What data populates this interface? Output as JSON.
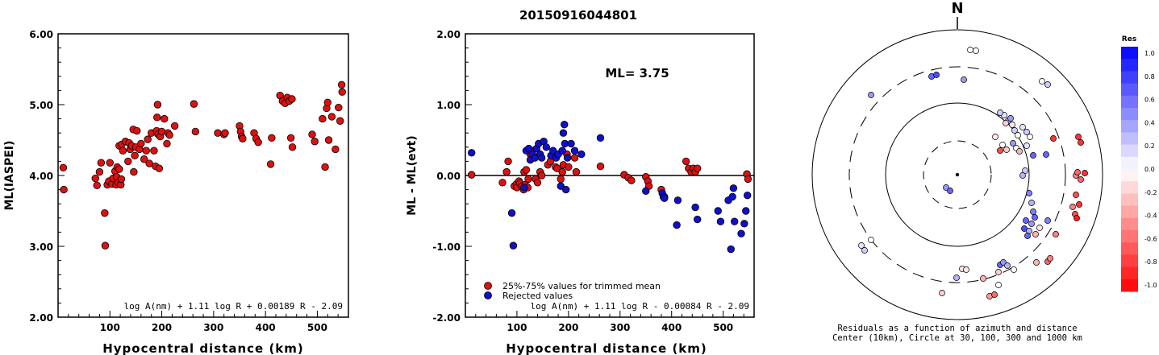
{
  "title": "20150916044801",
  "chart_data": [
    {
      "type": "scatter",
      "ylabel": "ML(IASPEI)",
      "xlabel": "Hypocentral distance (km)",
      "xlim": [
        0,
        560
      ],
      "ylim": [
        2.0,
        6.0
      ],
      "xticks": [
        100,
        200,
        300,
        400,
        500
      ],
      "yticks": [
        "2.00",
        "3.00",
        "4.00",
        "5.00",
        "6.00"
      ],
      "formula": "log A(nm) + 1.11 log R + 0.00189 R - 2.09",
      "series": [
        {
          "color": "#dd1111",
          "points": [
            [
              10,
              4.11
            ],
            [
              11,
              3.8
            ],
            [
              72,
              3.96
            ],
            [
              75,
              3.86
            ],
            [
              80,
              4.05
            ],
            [
              83,
              4.18
            ],
            [
              90,
              3.47
            ],
            [
              91,
              3.01
            ],
            [
              95,
              3.87
            ],
            [
              98,
              3.92
            ],
            [
              100,
              4.18
            ],
            [
              104,
              3.88
            ],
            [
              106,
              3.96
            ],
            [
              110,
              4.06
            ],
            [
              112,
              3.87
            ],
            [
              113,
              3.98
            ],
            [
              114,
              4.12
            ],
            [
              116,
              3.9
            ],
            [
              118,
              4.09
            ],
            [
              121,
              3.87
            ],
            [
              122,
              3.95
            ],
            [
              118,
              4.42
            ],
            [
              123,
              4.44
            ],
            [
              125,
              4.35
            ],
            [
              130,
              4.48
            ],
            [
              135,
              4.2
            ],
            [
              137,
              4.46
            ],
            [
              139,
              4.37
            ],
            [
              142,
              4.42
            ],
            [
              145,
              4.65
            ],
            [
              146,
              4.05
            ],
            [
              148,
              4.28
            ],
            [
              150,
              4.4
            ],
            [
              152,
              4.63
            ],
            [
              157,
              4.37
            ],
            [
              160,
              4.45
            ],
            [
              166,
              4.23
            ],
            [
              170,
              4.35
            ],
            [
              173,
              4.51
            ],
            [
              176,
              4.17
            ],
            [
              180,
              4.6
            ],
            [
              185,
              4.35
            ],
            [
              188,
              4.13
            ],
            [
              190,
              4.63
            ],
            [
              191,
              4.82
            ],
            [
              192,
              5.0
            ],
            [
              193,
              4.58
            ],
            [
              195,
              4.1
            ],
            [
              197,
              4.55
            ],
            [
              200,
              4.62
            ],
            [
              205,
              4.8
            ],
            [
              210,
              4.45
            ],
            [
              212,
              4.6
            ],
            [
              215,
              4.57
            ],
            [
              225,
              4.7
            ],
            [
              262,
              5.01
            ],
            [
              265,
              4.62
            ],
            [
              308,
              4.6
            ],
            [
              320,
              4.58
            ],
            [
              322,
              4.6
            ],
            [
              350,
              4.7
            ],
            [
              352,
              4.62
            ],
            [
              354,
              4.55
            ],
            [
              356,
              4.52
            ],
            [
              378,
              4.6
            ],
            [
              382,
              4.52
            ],
            [
              386,
              4.47
            ],
            [
              410,
              4.16
            ],
            [
              412,
              4.53
            ],
            [
              428,
              5.13
            ],
            [
              433,
              5.05
            ],
            [
              438,
              5.02
            ],
            [
              442,
              5.1
            ],
            [
              446,
              5.05
            ],
            [
              449,
              4.53
            ],
            [
              451,
              5.08
            ],
            [
              452,
              4.4
            ],
            [
              490,
              4.58
            ],
            [
              495,
              4.48
            ],
            [
              510,
              4.8
            ],
            [
              515,
              4.12
            ],
            [
              518,
              4.95
            ],
            [
              520,
              5.03
            ],
            [
              522,
              4.5
            ],
            [
              528,
              4.83
            ],
            [
              535,
              4.37
            ],
            [
              541,
              4.96
            ],
            [
              544,
              4.77
            ],
            [
              547,
              5.28
            ],
            [
              548,
              5.18
            ]
          ]
        }
      ]
    },
    {
      "type": "scatter",
      "ylabel": "ML - ML(evt)",
      "xlabel": "Hypocentral distance (km)",
      "xlim": [
        0,
        560
      ],
      "ylim": [
        -2.0,
        2.0
      ],
      "xticks": [
        100,
        200,
        300,
        400,
        500
      ],
      "yticks": [
        "-2.00",
        "-1.00",
        "0.00",
        "1.00",
        "2.00"
      ],
      "annotation": "ML= 3.75",
      "formula": "log A(nm) + 1.11 log R - 0.00084 R - 2.09",
      "legend": [
        {
          "label": "25%-75% values for trimmed mean",
          "color": "#dd1111"
        },
        {
          "label": "Rejected values",
          "color": "#1010cc"
        }
      ],
      "series": [
        {
          "color": "#dd1111",
          "points": [
            [
              12,
              0.01
            ],
            [
              72,
              -0.1
            ],
            [
              80,
              0.05
            ],
            [
              83,
              0.2
            ],
            [
              95,
              -0.15
            ],
            [
              99,
              -0.12
            ],
            [
              100,
              -0.17
            ],
            [
              104,
              -0.08
            ],
            [
              106,
              -0.11
            ],
            [
              110,
              -0.15
            ],
            [
              113,
              -0.2
            ],
            [
              114,
              0.05
            ],
            [
              116,
              -0.13
            ],
            [
              118,
              0.08
            ],
            [
              121,
              -0.17
            ],
            [
              122,
              -0.05
            ],
            [
              126,
              0.3
            ],
            [
              130,
              0.35
            ],
            [
              136,
              -0.05
            ],
            [
              140,
              -0.1
            ],
            [
              145,
              0.05
            ],
            [
              148,
              0.0
            ],
            [
              160,
              0.15
            ],
            [
              165,
              0.2
            ],
            [
              175,
              0.12
            ],
            [
              178,
              0.1
            ],
            [
              185,
              -0.05
            ],
            [
              188,
              0.05
            ],
            [
              190,
              0.15
            ],
            [
              197,
              0.3
            ],
            [
              200,
              0.12
            ],
            [
              212,
              0.25
            ],
            [
              215,
              0.05
            ],
            [
              262,
              0.13
            ],
            [
              308,
              0.01
            ],
            [
              316,
              -0.03
            ],
            [
              322,
              -0.07
            ],
            [
              350,
              -0.02
            ],
            [
              354,
              -0.08
            ],
            [
              356,
              -0.15
            ],
            [
              380,
              -0.2
            ],
            [
              386,
              -0.3
            ],
            [
              428,
              0.2
            ],
            [
              433,
              0.1
            ],
            [
              438,
              0.05
            ],
            [
              442,
              0.1
            ],
            [
              446,
              0.05
            ],
            [
              450,
              0.1
            ],
            [
              546,
              0.02
            ],
            [
              548,
              -0.05
            ]
          ]
        },
        {
          "color": "#1010cc",
          "points": [
            [
              12,
              0.32
            ],
            [
              90,
              -0.53
            ],
            [
              93,
              -0.99
            ],
            [
              114,
              -0.17
            ],
            [
              118,
              0.35
            ],
            [
              123,
              0.38
            ],
            [
              126,
              0.22
            ],
            [
              130,
              0.3
            ],
            [
              135,
              0.25
            ],
            [
              138,
              0.38
            ],
            [
              142,
              0.45
            ],
            [
              145,
              0.3
            ],
            [
              148,
              0.25
            ],
            [
              152,
              0.48
            ],
            [
              157,
              0.4
            ],
            [
              166,
              0.28
            ],
            [
              170,
              0.35
            ],
            [
              176,
              0.25
            ],
            [
              180,
              0.3
            ],
            [
              185,
              -0.15
            ],
            [
              188,
              0.35
            ],
            [
              190,
              0.6
            ],
            [
              192,
              0.72
            ],
            [
              193,
              0.45
            ],
            [
              195,
              -0.2
            ],
            [
              198,
              0.25
            ],
            [
              205,
              0.45
            ],
            [
              212,
              0.35
            ],
            [
              225,
              0.3
            ],
            [
              262,
              0.53
            ],
            [
              350,
              -0.22
            ],
            [
              382,
              -0.25
            ],
            [
              384,
              -0.3
            ],
            [
              386,
              -0.32
            ],
            [
              410,
              -0.7
            ],
            [
              412,
              -0.35
            ],
            [
              446,
              -0.45
            ],
            [
              450,
              -0.62
            ],
            [
              490,
              -0.5
            ],
            [
              495,
              -0.65
            ],
            [
              510,
              -0.35
            ],
            [
              515,
              -1.04
            ],
            [
              518,
              -0.3
            ],
            [
              520,
              -0.18
            ],
            [
              522,
              -0.65
            ],
            [
              535,
              -0.82
            ],
            [
              541,
              -0.68
            ],
            [
              544,
              -0.5
            ],
            [
              547,
              -0.28
            ]
          ]
        }
      ]
    }
  ],
  "polar": {
    "north_label": "N",
    "caption_line1": "Residuals as a function of azimuth and distance",
    "caption_line2": "Center (10km), Circle at 30, 100, 300 and 1000 km",
    "colorbar_title": "Res",
    "colorbar_ticks": [
      "1.0",
      "0.8",
      "0.6",
      "0.4",
      "0.2",
      "0.0",
      "-0.2",
      "-0.4",
      "-0.6",
      "-0.8",
      "-1.0"
    ],
    "stations": [
      [
        1203,
        62,
        0.0
      ],
      [
        1210,
        63,
        0.0
      ],
      [
        1155,
        95,
        0.6
      ],
      [
        1161,
        93,
        0.7
      ],
      [
        1195,
        99,
        0.4
      ],
      [
        1080,
        118,
        0.4
      ],
      [
        1292,
        101,
        0.0
      ],
      [
        1299,
        105,
        0.2
      ],
      [
        1245,
        143,
        0.1
      ],
      [
        1250,
        150,
        0.3
      ],
      [
        1255,
        155,
        -0.1
      ],
      [
        1258,
        162,
        0.2
      ],
      [
        1262,
        168,
        0.0
      ],
      [
        1268,
        158,
        0.1
      ],
      [
        1273,
        164,
        0.2
      ],
      [
        1277,
        170,
        0.0
      ],
      [
        1253,
        147,
        0.4
      ],
      [
        1247,
        153,
        -0.2
      ],
      [
        1240,
        140,
        0.2
      ],
      [
        1234,
        170,
        -0.1
      ],
      [
        1256,
        178,
        0.4
      ],
      [
        1260,
        184,
        0.0
      ],
      [
        1264,
        188,
        -0.3
      ],
      [
        1243,
        180,
        0.0
      ],
      [
        1248,
        186,
        -0.2
      ],
      [
        1240,
        187,
        -0.7
      ],
      [
        1273,
        181,
        0.1
      ],
      [
        1281,
        193,
        0.6
      ],
      [
        1297,
        192,
        0.6
      ],
      [
        1271,
        212,
        0.2
      ],
      [
        1268,
        218,
        0.3
      ],
      [
        1306,
        172,
        -0.8
      ],
      [
        1337,
        170,
        -0.8
      ],
      [
        1340,
        177,
        -0.8
      ],
      [
        1334,
        218,
        -0.5
      ],
      [
        1340,
        223,
        -0.6
      ],
      [
        1345,
        215,
        -0.8
      ],
      [
        1336,
        214,
        -0.6
      ],
      [
        1173,
        233,
        0.4
      ],
      [
        1178,
        237,
        0.6
      ],
      [
        1276,
        240,
        0.5
      ],
      [
        1279,
        252,
        0.3
      ],
      [
        1281,
        263,
        0.5
      ],
      [
        1283,
        270,
        0.6
      ],
      [
        1272,
        274,
        0.6
      ],
      [
        1279,
        278,
        0.4
      ],
      [
        1270,
        284,
        0.7
      ],
      [
        1276,
        287,
        0.3
      ],
      [
        1274,
        293,
        0.6
      ],
      [
        1284,
        291,
        -0.3
      ],
      [
        1289,
        283,
        -0.1
      ],
      [
        1299,
        274,
        0.5
      ],
      [
        1309,
        291,
        -0.5
      ],
      [
        1334,
        242,
        -0.7
      ],
      [
        1330,
        257,
        -0.5
      ],
      [
        1338,
        254,
        -0.8
      ],
      [
        1333,
        266,
        -0.7
      ],
      [
        1335,
        271,
        -0.9
      ],
      [
        1240,
        329,
        0.6
      ],
      [
        1244,
        326,
        0.4
      ],
      [
        1249,
        330,
        0.3
      ],
      [
        1257,
        335,
        0.0
      ],
      [
        1193,
        334,
        -0.1
      ],
      [
        1198,
        335,
        -0.1
      ],
      [
        1219,
        346,
        -0.3
      ],
      [
        1238,
        338,
        -0.2
      ],
      [
        1238,
        354,
        0.0
      ],
      [
        1186,
        345,
        0.3
      ],
      [
        1168,
        364,
        -0.2
      ],
      [
        1227,
        368,
        -0.4
      ],
      [
        1233,
        366,
        -0.6
      ],
      [
        1299,
        325,
        -0.6
      ],
      [
        1302,
        321,
        -0.5
      ],
      [
        1285,
        326,
        -0.3
      ],
      [
        1068,
        305,
        0.1
      ],
      [
        1072,
        311,
        0.2
      ],
      [
        1080,
        298,
        0.0
      ]
    ]
  }
}
